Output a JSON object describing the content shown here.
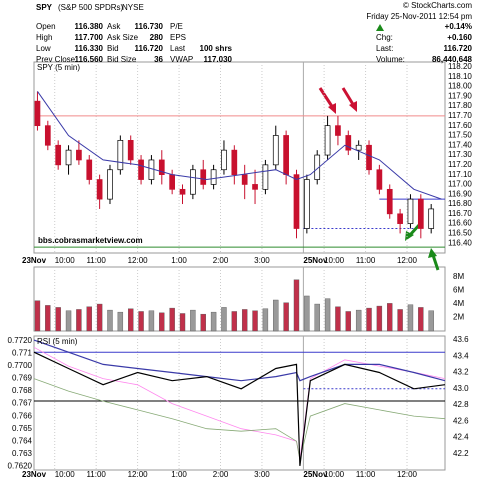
{
  "header": {
    "symbol": "SPY",
    "name": "(S&P 500 SPDRs)",
    "exchange": "NYSE",
    "source": "© StockCharts.com",
    "date": "Friday 25-Nov-2011 12:54 pm",
    "columns": [
      [
        {
          "label": "Open",
          "value": "116.380"
        },
        {
          "label": "High",
          "value": "117.700"
        },
        {
          "label": "Low",
          "value": "116.330"
        },
        {
          "label": "Prev Close",
          "value": "116.560"
        }
      ],
      [
        {
          "label": "Ask",
          "value": "116.730"
        },
        {
          "label": "Ask Size",
          "value": "280"
        },
        {
          "label": "Bid",
          "value": "116.720"
        },
        {
          "label": "Bid Size",
          "value": "36"
        }
      ],
      [
        {
          "label": "P/E"
        },
        {
          "label": "EPS"
        },
        {
          "label": "Last",
          "value": "100 shrs"
        },
        {
          "label": "VWAP",
          "value": "117.030"
        }
      ]
    ],
    "change_pct": "+0.14%",
    "summary": [
      {
        "label": "Chg:",
        "value": "+0.160"
      },
      {
        "label": "Last:",
        "value": "116.720"
      },
      {
        "label": "Volume:",
        "value": "86,440,648"
      }
    ]
  },
  "chart_data": [
    {
      "type": "candlestick",
      "label": "SPY (5 min)",
      "watermark": "bbs.cobrasmarketview.com",
      "x": [
        1,
        4,
        7,
        10,
        13,
        16,
        19,
        22,
        25,
        28,
        31,
        34,
        37,
        40,
        43,
        46,
        49,
        52,
        55,
        58,
        61,
        64,
        67,
        70,
        73,
        76,
        79,
        82,
        85,
        88,
        91,
        94,
        97,
        100,
        103,
        106,
        109,
        112,
        115
      ],
      "open": [
        117.85,
        117.6,
        117.4,
        117.2,
        117.35,
        117.25,
        117.05,
        116.85,
        117.15,
        117.45,
        117.25,
        117.05,
        117.25,
        117.1,
        116.95,
        116.9,
        117.15,
        117.0,
        117.15,
        117.35,
        117.1,
        117.0,
        116.95,
        117.2,
        117.5,
        117.1,
        116.55,
        117.05,
        117.3,
        117.6,
        117.5,
        117.35,
        117.4,
        117.15,
        116.95,
        116.7,
        116.6,
        116.85,
        116.55
      ],
      "high": [
        117.95,
        117.65,
        117.45,
        117.4,
        117.45,
        117.3,
        117.1,
        117.2,
        117.5,
        117.5,
        117.3,
        117.3,
        117.35,
        117.15,
        117.0,
        117.2,
        117.25,
        117.2,
        117.45,
        117.4,
        117.2,
        117.15,
        117.25,
        117.6,
        117.55,
        117.15,
        117.1,
        117.35,
        117.7,
        117.7,
        117.55,
        117.45,
        117.45,
        117.2,
        117.0,
        116.75,
        116.9,
        116.9,
        116.8
      ],
      "low": [
        117.55,
        117.35,
        117.15,
        117.1,
        117.2,
        117.0,
        116.75,
        116.8,
        117.1,
        117.2,
        117.0,
        117.0,
        117.0,
        116.9,
        116.8,
        116.85,
        116.95,
        116.95,
        117.1,
        117.0,
        116.85,
        116.8,
        116.9,
        117.15,
        117.0,
        116.45,
        116.5,
        117.0,
        117.25,
        117.4,
        117.3,
        117.25,
        117.1,
        116.9,
        116.65,
        116.5,
        116.55,
        116.45,
        116.5
      ],
      "close": [
        117.6,
        117.4,
        117.2,
        117.35,
        117.25,
        117.05,
        116.85,
        117.15,
        117.45,
        117.25,
        117.05,
        117.25,
        117.1,
        116.95,
        116.9,
        117.15,
        117.0,
        117.15,
        117.35,
        117.1,
        117.0,
        116.95,
        117.2,
        117.5,
        117.1,
        116.55,
        117.05,
        117.3,
        117.6,
        117.5,
        117.35,
        117.4,
        117.15,
        116.95,
        116.7,
        116.6,
        116.85,
        116.55,
        116.75
      ],
      "up_color": "#ffffff",
      "down_color": "#c8102e",
      "ma": {
        "x": [
          1,
          10,
          20,
          30,
          40,
          50,
          60,
          70,
          76,
          80,
          90,
          100,
          110,
          118
        ],
        "values": [
          117.95,
          117.5,
          117.25,
          117.2,
          117.1,
          117.05,
          117.1,
          117.15,
          117.05,
          117.1,
          117.4,
          117.25,
          116.95,
          116.85
        ],
        "color": "#3a3aa8"
      },
      "hlines": [
        {
          "value": 117.7,
          "color": "#f08a8a"
        },
        {
          "value": 116.85,
          "color": "#3a3acc",
          "x": [
            100,
            119
          ]
        },
        {
          "value": 116.55,
          "color": "#3a3acc",
          "x": [
            78,
            110
          ],
          "dashed": true
        },
        {
          "value": 116.36,
          "color": "#2e8b2e"
        }
      ],
      "xlim": [
        0,
        119
      ],
      "ylim": [
        116.3,
        118.25
      ],
      "yticks": [
        {
          "value": 118.2,
          "label": "118.20"
        },
        {
          "value": 118.1,
          "label": "118.10"
        },
        {
          "value": 118.0,
          "label": "118.00"
        },
        {
          "value": 117.9,
          "label": "117.90"
        },
        {
          "value": 117.8,
          "label": "117.80"
        },
        {
          "value": 117.7,
          "label": "117.70"
        },
        {
          "value": 117.6,
          "label": "117.60"
        },
        {
          "value": 117.5,
          "label": "117.50"
        },
        {
          "value": 117.4,
          "label": "117.40"
        },
        {
          "value": 117.3,
          "label": "117.30"
        },
        {
          "value": 117.2,
          "label": "117.20"
        },
        {
          "value": 117.1,
          "label": "117.10"
        },
        {
          "value": 117.0,
          "label": "117.00"
        },
        {
          "value": 116.9,
          "label": "116.90"
        },
        {
          "value": 116.8,
          "label": "116.80"
        },
        {
          "value": 116.7,
          "label": "116.70"
        },
        {
          "value": 116.6,
          "label": "116.60"
        },
        {
          "value": 116.5,
          "label": "116.50"
        },
        {
          "value": 116.4,
          "label": "116.40"
        }
      ],
      "xticks": [
        {
          "value": 6,
          "label": "10:00"
        },
        {
          "value": 18,
          "label": "11:00"
        },
        {
          "value": 30,
          "label": "12:00"
        },
        {
          "value": 42,
          "label": "1:00"
        },
        {
          "value": 54,
          "label": "2:00"
        },
        {
          "value": 66,
          "label": "3:00"
        },
        {
          "value": 84,
          "label": "10:00"
        },
        {
          "value": 96,
          "label": "11:00"
        },
        {
          "value": 108,
          "label": "12:00"
        }
      ],
      "date_ticks": [
        {
          "value": 0,
          "label": "23Nov"
        },
        {
          "value": 78,
          "label": "25Nov"
        }
      ]
    },
    {
      "type": "bar",
      "values": [
        4500000,
        3800000,
        3500000,
        3000000,
        3200000,
        3600000,
        4000000,
        3100000,
        2800000,
        3300000,
        2900000,
        3000000,
        2700000,
        3400000,
        2600000,
        3100000,
        2500000,
        2800000,
        3500000,
        2900000,
        3200000,
        3000000,
        3300000,
        4600000,
        4200000,
        7600000,
        5200000,
        4000000,
        4800000,
        3600000,
        2900000,
        3100000,
        3400000,
        3700000,
        4100000,
        3200000,
        3900000,
        3500000,
        3000000
      ],
      "up_color": "#9a9a9a",
      "down_color": "#c0304a",
      "ylim": [
        0,
        9500000
      ],
      "yticks": [
        {
          "value": 8000000,
          "label": "8M"
        },
        {
          "value": 6000000,
          "label": "6M"
        },
        {
          "value": 4000000,
          "label": "4M"
        },
        {
          "value": 2000000,
          "label": "2M"
        }
      ]
    },
    {
      "type": "line",
      "label": "RSI (5 min)",
      "x": [
        0,
        10,
        20,
        30,
        40,
        50,
        60,
        70,
        76,
        77,
        80,
        90,
        100,
        110,
        119
      ],
      "series": [
        {
          "color": "#ff88ee",
          "values": [
            0.7715,
            0.77,
            0.769,
            0.7685,
            0.767,
            0.766,
            0.765,
            0.7645,
            0.764,
            0.7625,
            0.769,
            0.7705,
            0.77,
            0.7695,
            0.769
          ]
        },
        {
          "color": "#88aa77",
          "values": [
            0.769,
            0.768,
            0.7672,
            0.7665,
            0.7658,
            0.765,
            0.7648,
            0.765,
            0.764,
            0.7625,
            0.766,
            0.767,
            0.7665,
            0.766,
            0.7658
          ]
        },
        {
          "color": "#3a3aa8",
          "axis": "y2",
          "values": [
            43.6,
            43.45,
            43.3,
            43.25,
            43.2,
            43.15,
            43.1,
            43.15,
            43.2,
            43.1,
            43.15,
            43.3,
            43.3,
            43.2,
            43.1
          ]
        },
        {
          "color": "#000000",
          "axis": "y2",
          "values": [
            43.45,
            43.25,
            43.05,
            43.2,
            43.1,
            43.15,
            43.0,
            43.25,
            43.3,
            42.05,
            43.1,
            43.3,
            43.2,
            43.0,
            43.05
          ]
        }
      ],
      "hlines": [
        {
          "value": 43.45,
          "color": "#3a3acc",
          "axis": "y2"
        },
        {
          "value": 42.85,
          "color": "#000000",
          "axis": "y2"
        },
        {
          "value": 43.0,
          "color": "#3a3acc",
          "axis": "y2",
          "x": [
            78,
            119
          ],
          "dashed": true
        }
      ],
      "ylim": [
        0.7617,
        0.7724
      ],
      "y2lim": [
        42.0,
        43.65
      ],
      "yticks": [
        {
          "value": 0.772,
          "label": "0.7720"
        },
        0.771,
        {
          "value": 0.77,
          "label": "0.7700"
        },
        0.769,
        0.768,
        0.767,
        0.766,
        0.765,
        0.764,
        0.763,
        {
          "value": 0.762,
          "label": "0.7620"
        }
      ],
      "y2ticks": [
        43.6,
        43.4,
        43.2,
        {
          "value": 43.0,
          "label": "43.0"
        },
        42.8,
        42.6,
        42.4,
        42.2
      ]
    }
  ]
}
